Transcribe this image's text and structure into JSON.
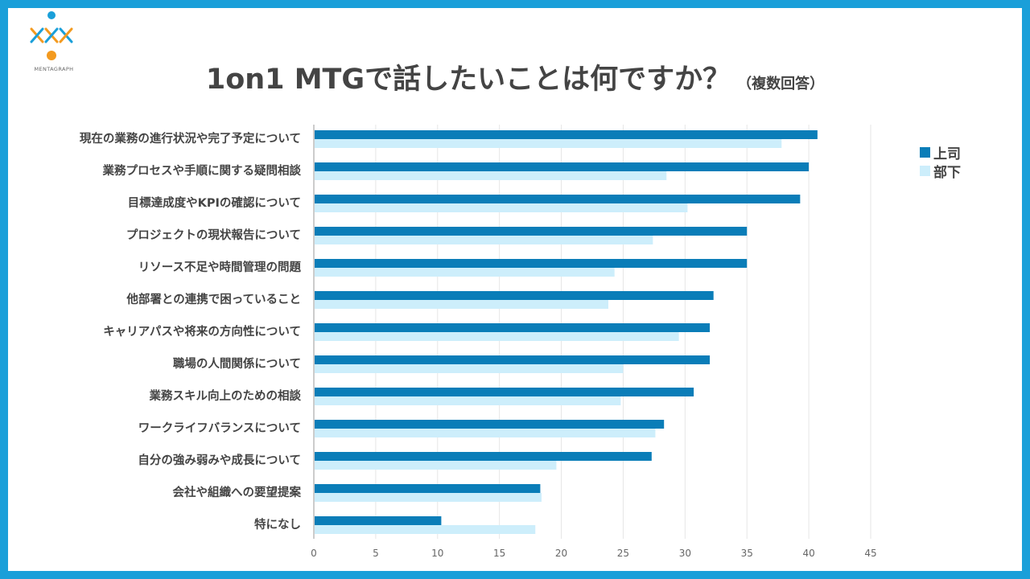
{
  "brand": {
    "name": "MENTAGRAPH"
  },
  "title": {
    "main": "1on1 MTGで話したいことは何ですか？",
    "sub": "（複数回答）"
  },
  "colors": {
    "frame": "#1a9fd9",
    "boss": "#0a7db8",
    "subordinate": "#cdeefb",
    "logo_blue": "#1a9fd9",
    "logo_orange": "#f39a1f"
  },
  "chart_data": {
    "type": "bar",
    "orientation": "horizontal",
    "title": "1on1 MTGで話したいことは何ですか？（複数回答）",
    "categories": [
      "現在の業務の進行状況や完了予定について",
      "業務プロセスや手順に関する疑問相談",
      "目標達成度やKPIの確認について",
      "プロジェクトの現状報告について",
      "リソース不足や時間管理の問題",
      "他部署との連携で困っていること",
      "キャリアパスや将来の方向性について",
      "職場の人間関係について",
      "業務スキル向上のための相談",
      "ワークライフバランスについて",
      "自分の強み弱みや成長について",
      "会社や組織への要望提案",
      "特になし"
    ],
    "series": [
      {
        "name": "上司",
        "values": [
          40.7,
          40.0,
          39.3,
          35.0,
          35.0,
          32.3,
          32.0,
          32.0,
          30.7,
          28.3,
          27.3,
          18.3,
          10.3
        ]
      },
      {
        "name": "部下",
        "values": [
          37.8,
          28.5,
          30.2,
          27.4,
          24.3,
          23.8,
          29.5,
          25.0,
          24.8,
          27.6,
          19.6,
          18.4,
          17.9
        ]
      }
    ],
    "xlim": [
      0,
      45
    ],
    "xticks": [
      "0",
      "5",
      "10",
      "15",
      "20",
      "25",
      "30",
      "35",
      "40",
      "45"
    ],
    "grid": true,
    "legend": "top-right"
  }
}
